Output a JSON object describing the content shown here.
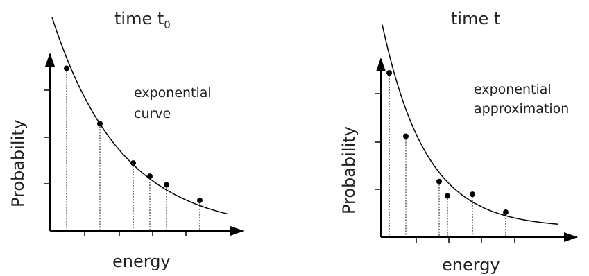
{
  "panels": [
    {
      "id": "left",
      "title_text": "time t",
      "title_sub": "0",
      "xlabel": "energy",
      "ylabel": "Probability",
      "annotation": [
        "exponential",
        "curve"
      ],
      "points": [
        {
          "x": 0.2,
          "y": 0.702
        },
        {
          "x": 0.6,
          "y": 0.463
        },
        {
          "x": 1.0,
          "y": 0.293
        },
        {
          "x": 1.2,
          "y": 0.236
        },
        {
          "x": 1.4,
          "y": 0.199
        },
        {
          "x": 1.8,
          "y": 0.132
        }
      ]
    },
    {
      "id": "right",
      "title_text": "time t",
      "title_sub": "",
      "xlabel": "energy",
      "ylabel": "Probability",
      "annotation": [
        "exponential",
        "approximation"
      ],
      "points": [
        {
          "x": 0.1,
          "y": 0.705
        },
        {
          "x": 0.3,
          "y": 0.433
        },
        {
          "x": 0.7,
          "y": 0.239
        },
        {
          "x": 0.8,
          "y": 0.177
        },
        {
          "x": 1.1,
          "y": 0.184
        },
        {
          "x": 1.5,
          "y": 0.107
        }
      ]
    }
  ],
  "colors": {
    "ink": "#000000",
    "text": "#222222"
  }
}
